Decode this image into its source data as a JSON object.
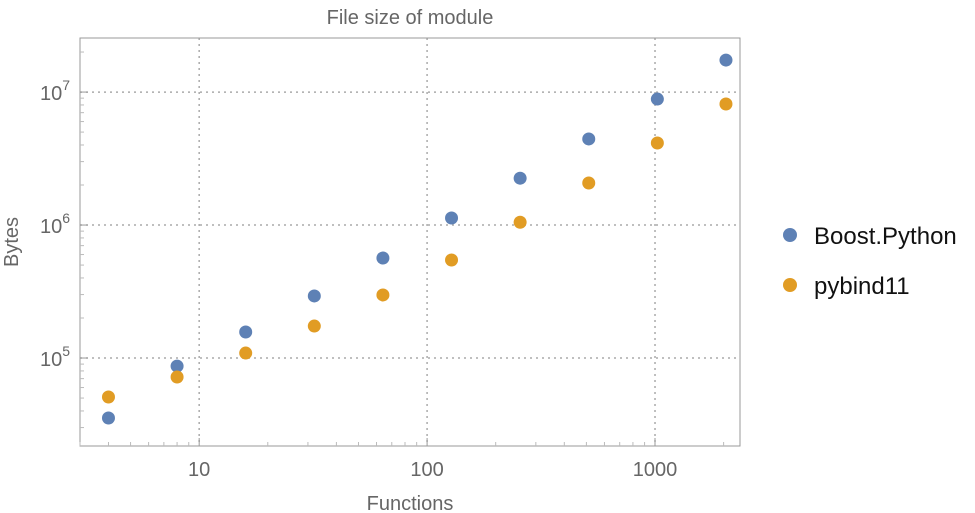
{
  "chart_data": {
    "type": "scatter",
    "title": "File size of module",
    "xlabel": "Functions",
    "ylabel": "Bytes",
    "x_scale": "log",
    "y_scale": "log",
    "xlim": [
      3,
      2360
    ],
    "ylim": [
      21800,
      25500000
    ],
    "grid": true,
    "legend_position": "right",
    "x_ticks": [
      {
        "value": 10,
        "label": "10"
      },
      {
        "value": 100,
        "label": "100"
      },
      {
        "value": 1000,
        "label": "1000"
      }
    ],
    "y_ticks": [
      {
        "value": 100000,
        "base": "10",
        "exp": "5"
      },
      {
        "value": 1000000,
        "base": "10",
        "exp": "6"
      },
      {
        "value": 10000000,
        "base": "10",
        "exp": "7"
      }
    ],
    "x": [
      4,
      8,
      16,
      32,
      64,
      128,
      256,
      512,
      1024,
      2048
    ],
    "series": [
      {
        "name": "Boost.Python",
        "color": "#5E81B5",
        "values": [
          35400,
          87000,
          157000,
          293000,
          565000,
          1130000,
          2250000,
          4440000,
          8860000,
          17400000
        ]
      },
      {
        "name": "pybind11",
        "color": "#E19C24",
        "values": [
          50900,
          72000,
          109000,
          174000,
          298000,
          546000,
          1050000,
          2070000,
          4140000,
          8130000
        ]
      }
    ]
  }
}
